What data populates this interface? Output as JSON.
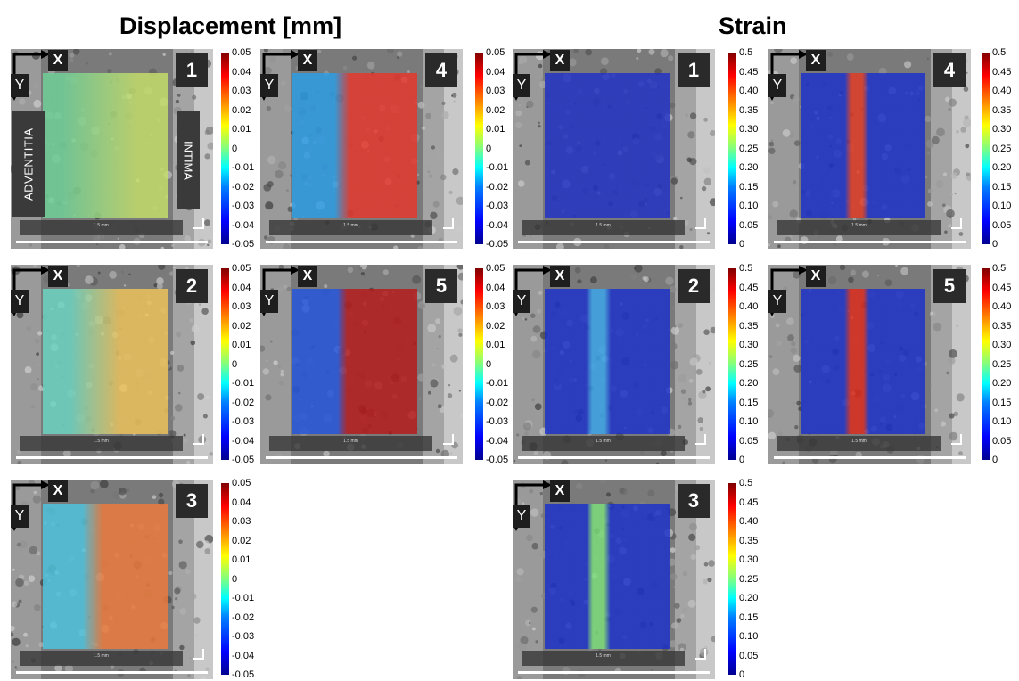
{
  "titles": {
    "displacement": "Displacement [mm]",
    "strain": "Strain"
  },
  "labels": {
    "x": "X",
    "y": "Y",
    "adventitia": "ADVENTITIA",
    "intima": "INTIMA",
    "scalebar": "1.5 mm"
  },
  "colorbars": {
    "displacement": [
      "0.05",
      "0.04",
      "0.03",
      "0.02",
      "0.01",
      "0",
      "-0.01",
      "-0.02",
      "-0.03",
      "-0.04",
      "-0.05"
    ],
    "strain": [
      "0.5",
      "0.45",
      "0.40",
      "0.35",
      "0.30",
      "0.25",
      "0.20",
      "0.15",
      "0.10",
      "0.05",
      "0"
    ]
  },
  "panels": [
    {
      "group": "displacement",
      "number": "1",
      "left": "#6fd39a",
      "right": "#c6e06a",
      "split": 0.45,
      "blur": 0.3,
      "band": false
    },
    {
      "group": "displacement",
      "number": "2",
      "left": "#6bd7c4",
      "right": "#f0c45a",
      "split": 0.42,
      "blur": 0.2,
      "band": false
    },
    {
      "group": "displacement",
      "number": "3",
      "left": "#4ec6e0",
      "right": "#f07a3a",
      "split": 0.4,
      "blur": 0.08,
      "band": false
    },
    {
      "group": "displacement",
      "number": "4",
      "left": "#2a9ee8",
      "right": "#e8352a",
      "split": 0.4,
      "blur": 0.06,
      "band": false
    },
    {
      "group": "displacement",
      "number": "5",
      "left": "#2255e0",
      "right": "#b81818",
      "split": 0.4,
      "blur": 0.04,
      "band": false
    },
    {
      "group": "strain",
      "number": "1",
      "left": "#1f30c8",
      "right": "#1f30c8",
      "split": 0.45,
      "blur": 0.1,
      "band": false
    },
    {
      "group": "strain",
      "number": "2",
      "left": "#1a30cc",
      "right": "#1a30cc",
      "split": 0.43,
      "blur": 0.1,
      "band": true,
      "bandColor": "#3aa6ec",
      "bandWidth": 0.1
    },
    {
      "group": "strain",
      "number": "3",
      "left": "#1a30cc",
      "right": "#1a30cc",
      "split": 0.43,
      "blur": 0.1,
      "band": true,
      "bandColor": "#7de07a",
      "bandWidth": 0.09
    },
    {
      "group": "strain",
      "number": "4",
      "left": "#1a30cc",
      "right": "#1a30cc",
      "split": 0.45,
      "blur": 0.1,
      "band": true,
      "bandColor": "#e43a22",
      "bandWidth": 0.09
    },
    {
      "group": "strain",
      "number": "5",
      "left": "#1a30cc",
      "right": "#1a30cc",
      "split": 0.45,
      "blur": 0.1,
      "band": true,
      "bandColor": "#e02a1a",
      "bandWidth": 0.1
    }
  ]
}
